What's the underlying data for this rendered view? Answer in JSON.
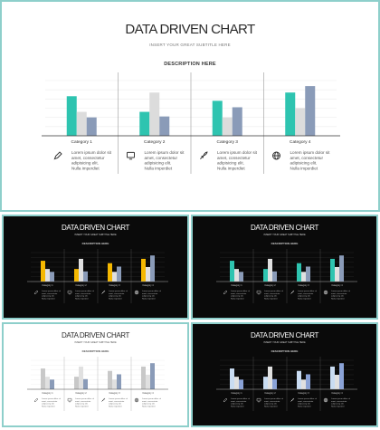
{
  "slide": {
    "title": "DATA DRIVEN CHART",
    "subtitle": "INSERT YOUR GREAT SUBTITLE HERE",
    "description_heading": "DESCRIPTION HERE"
  },
  "categories": [
    {
      "label": "Category 1",
      "icon": "pencil-icon",
      "body": "Lorem ipsum dolor sit amet, consectetur adipisicing elit. Nulla imperdiet"
    },
    {
      "label": "Category 2",
      "icon": "monitor-icon",
      "body": "Lorem ipsum dolor sit amet, consectetur adipisicing elit. Nulla imperdiet"
    },
    {
      "label": "Category 3",
      "icon": "rocket-icon",
      "body": "Lorem ipsum dolor sit amet, consectetur adipisicing elit. Nulla imperdiet"
    },
    {
      "label": "Category 4",
      "icon": "globe-icon",
      "body": "Lorem ipsum dolor sit amet, consectetur adipisicing elit. Nulla imperdiet"
    }
  ],
  "chart_data": {
    "type": "bar",
    "categories": [
      "Category 1",
      "Category 2",
      "Category 3",
      "Category 4"
    ],
    "series": [
      {
        "values": [
          43,
          26,
          38,
          47
        ]
      },
      {
        "values": [
          26,
          47,
          20,
          30
        ]
      },
      {
        "values": [
          20,
          21,
          31,
          54
        ]
      }
    ],
    "ylim": [
      0,
      60
    ],
    "grid": true
  },
  "variants": [
    {
      "theme": "dark",
      "colors": [
        "#f5b800",
        "#e0e0e0",
        "#8a9bb8"
      ]
    },
    {
      "theme": "dark",
      "colors": [
        "#2ec4b0",
        "#e0e0e0",
        "#8a9bb8"
      ]
    },
    {
      "theme": "light",
      "colors": [
        "#c8c8c8",
        "#e0e0e0",
        "#8a9bb8"
      ]
    },
    {
      "theme": "dark",
      "colors": [
        "#c9dcf2",
        "#e0e0e0",
        "#8aa2d6"
      ]
    }
  ],
  "colors": {
    "main": [
      "#2ec4b0",
      "#dcdcdc",
      "#8a9bb8"
    ],
    "border": "#8ecfcb"
  }
}
